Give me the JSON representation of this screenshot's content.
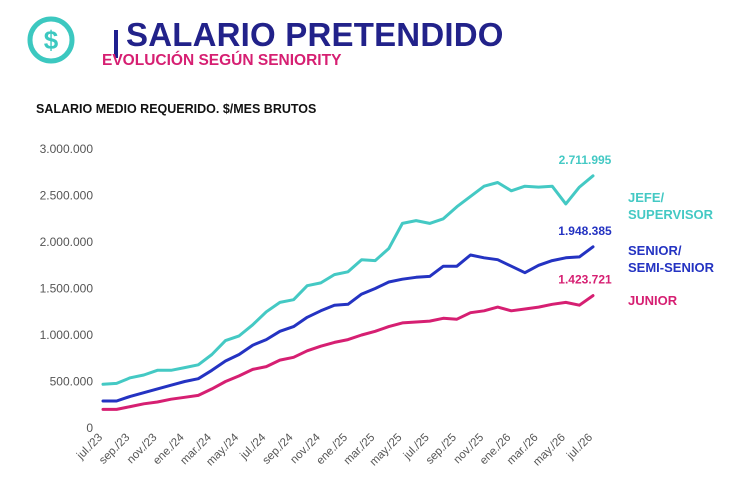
{
  "header": {
    "title": "SALARIO PRETENDIDO",
    "subtitle": "EVOLUCIÓN SEGÚN SENIORITY",
    "logo_icon": "dollar-circle-icon"
  },
  "colors": {
    "title": "#22228a",
    "subtitle": "#d61f72",
    "jefe": "#44c9c4",
    "senior": "#2433c2",
    "junior": "#d61f72",
    "logo": "#3cc8c0"
  },
  "chart_data": {
    "type": "line",
    "title": "SALARIO MEDIO REQUERIDO. $/MES BRUTOS",
    "xlabel": "",
    "ylabel": "",
    "ylim": [
      0,
      3000000
    ],
    "y_ticks": [
      0,
      500000,
      1000000,
      1500000,
      2000000,
      2500000,
      3000000
    ],
    "y_tick_labels": [
      "0",
      "500.000",
      "1.000.000",
      "1.500.000",
      "2.000.000",
      "2.500.000",
      "3.000.000"
    ],
    "grid": false,
    "legend": "right",
    "x": [
      "jul./23",
      "ago./23",
      "sep./23",
      "oct./23",
      "nov./23",
      "dic./23",
      "ene./24",
      "feb./24",
      "mar./24",
      "abr./24",
      "may./24",
      "jun./24",
      "jul./24",
      "ago./24",
      "sep./24",
      "oct./24",
      "nov./24",
      "dic./24",
      "ene./25",
      "feb./25",
      "mar./25",
      "abr./25",
      "may./25",
      "jun./25",
      "jul./25",
      "ago./25",
      "sep./25",
      "oct./25",
      "nov./25",
      "dic./25",
      "ene./26",
      "feb./26",
      "mar./26",
      "abr./26",
      "may./26",
      "jun./26",
      "jul./26"
    ],
    "x_tick_labels": [
      "jul./23",
      "sep./23",
      "nov./23",
      "ene./24",
      "mar./24",
      "may./24",
      "jul./24",
      "sep./24",
      "nov./24",
      "ene./25",
      "mar./25",
      "may./25",
      "jul./25",
      "sep./25",
      "nov./25",
      "ene./26",
      "mar./26",
      "may./26",
      "jul./26"
    ],
    "series": [
      {
        "name": "JEFE/\nSUPERVISOR",
        "name_lines": [
          "JEFE/",
          "SUPERVISOR"
        ],
        "color": "#44c9c4",
        "last_label": "2.711.995",
        "values": [
          470000,
          480000,
          540000,
          570000,
          620000,
          620000,
          650000,
          680000,
          790000,
          940000,
          990000,
          1110000,
          1250000,
          1350000,
          1380000,
          1530000,
          1560000,
          1650000,
          1680000,
          1810000,
          1800000,
          1930000,
          2200000,
          2230000,
          2200000,
          2250000,
          2380000,
          2490000,
          2600000,
          2640000,
          2550000,
          2600000,
          2590000,
          2600000,
          2410000,
          2590000,
          2711995
        ]
      },
      {
        "name": "SENIOR/\nSEMI-SENIOR",
        "name_lines": [
          "SENIOR/",
          "SEMI-SENIOR"
        ],
        "color": "#2433c2",
        "last_label": "1.948.385",
        "values": [
          290000,
          290000,
          340000,
          380000,
          420000,
          460000,
          500000,
          530000,
          620000,
          720000,
          790000,
          890000,
          950000,
          1040000,
          1090000,
          1190000,
          1260000,
          1320000,
          1330000,
          1440000,
          1500000,
          1570000,
          1600000,
          1620000,
          1630000,
          1740000,
          1740000,
          1860000,
          1830000,
          1810000,
          1740000,
          1670000,
          1750000,
          1800000,
          1830000,
          1840000,
          1948385
        ]
      },
      {
        "name": "JUNIOR",
        "name_lines": [
          "JUNIOR"
        ],
        "color": "#d61f72",
        "last_label": "1.423.721",
        "values": [
          200000,
          200000,
          230000,
          260000,
          280000,
          310000,
          330000,
          350000,
          420000,
          500000,
          560000,
          630000,
          660000,
          730000,
          760000,
          830000,
          880000,
          920000,
          950000,
          1000000,
          1040000,
          1090000,
          1130000,
          1140000,
          1150000,
          1180000,
          1170000,
          1240000,
          1260000,
          1300000,
          1260000,
          1280000,
          1300000,
          1330000,
          1350000,
          1320000,
          1423721
        ]
      }
    ]
  }
}
